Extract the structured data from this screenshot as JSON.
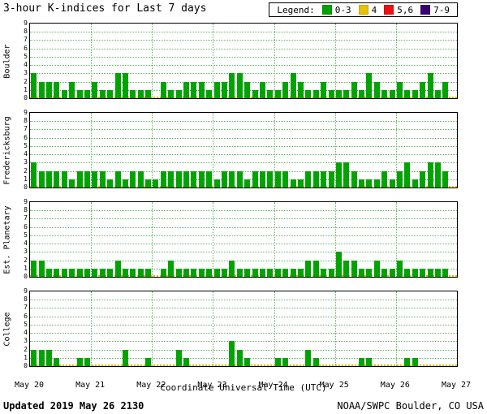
{
  "title": "3-hour K-indices for Last 7 days",
  "legend": {
    "label": "Legend:",
    "items": [
      {
        "label": "0-3",
        "color": "#00a300"
      },
      {
        "label": "4",
        "color": "#e8c100"
      },
      {
        "label": "5,6",
        "color": "#ee1111"
      },
      {
        "label": "7-9",
        "color": "#3a0075"
      }
    ]
  },
  "footer": {
    "updated": "Updated 2019 May 26 2130",
    "source": "NOAA/SWPC Boulder, CO USA"
  },
  "chart_data": {
    "type": "bar",
    "title": "3-hour K-indices for Last 7 days",
    "xlabel": "Coordinate Universal Time (UTC)",
    "ylim": [
      0,
      9
    ],
    "y_ticks": [
      0,
      1,
      2,
      3,
      4,
      5,
      6,
      7,
      8,
      9
    ],
    "x_ticks": [
      "May 20",
      "May 21",
      "May 22",
      "May 23",
      "May 24",
      "May 25",
      "May 26",
      "May 27"
    ],
    "bars_per_day": 8,
    "color_rule": "K 0-3 green, K 4 yellow, K 5-6 red, K 7-9 purple",
    "series": [
      {
        "name": "Boulder",
        "values": [
          3,
          2,
          2,
          2,
          1,
          2,
          1,
          1,
          2,
          1,
          1,
          3,
          3,
          1,
          1,
          1,
          0,
          2,
          1,
          1,
          2,
          2,
          2,
          1,
          2,
          2,
          3,
          3,
          2,
          1,
          2,
          1,
          1,
          2,
          3,
          2,
          1,
          1,
          2,
          1,
          1,
          1,
          2,
          1,
          3,
          2,
          1,
          1,
          2,
          1,
          1,
          2,
          3,
          1,
          2
        ]
      },
      {
        "name": "Fredericksburg",
        "values": [
          3,
          2,
          2,
          2,
          2,
          1,
          2,
          2,
          2,
          2,
          1,
          2,
          1,
          2,
          2,
          1,
          1,
          2,
          2,
          2,
          2,
          2,
          2,
          2,
          1,
          2,
          2,
          2,
          1,
          2,
          2,
          2,
          2,
          2,
          1,
          1,
          2,
          2,
          2,
          2,
          3,
          3,
          2,
          1,
          1,
          1,
          2,
          1,
          2,
          3,
          1,
          2,
          3,
          3,
          2
        ]
      },
      {
        "name": "Est. Planetary",
        "values": [
          2,
          2,
          1,
          1,
          1,
          1,
          1,
          1,
          1,
          1,
          1,
          2,
          1,
          1,
          1,
          1,
          0,
          1,
          2,
          1,
          1,
          1,
          1,
          1,
          1,
          1,
          2,
          1,
          1,
          1,
          1,
          1,
          1,
          1,
          1,
          1,
          2,
          2,
          1,
          1,
          3,
          2,
          2,
          1,
          1,
          2,
          1,
          1,
          2,
          1,
          1,
          1,
          1,
          1,
          1
        ]
      },
      {
        "name": "College",
        "values": [
          2,
          2,
          2,
          1,
          0,
          0,
          1,
          1,
          0,
          0,
          0,
          0,
          2,
          0,
          0,
          1,
          0,
          0,
          0,
          2,
          1,
          0,
          0,
          0,
          0,
          0,
          3,
          2,
          1,
          0,
          0,
          0,
          1,
          1,
          0,
          0,
          2,
          1,
          0,
          0,
          0,
          0,
          0,
          1,
          1,
          0,
          0,
          0,
          0,
          1,
          1,
          0,
          0,
          0,
          0
        ]
      }
    ]
  }
}
